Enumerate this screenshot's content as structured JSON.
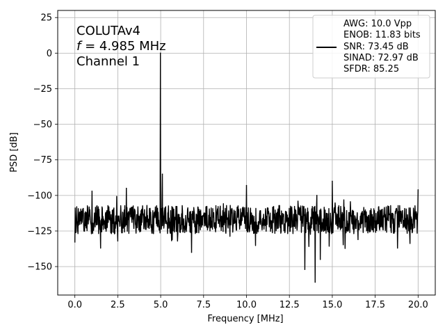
{
  "chart_data": {
    "type": "line",
    "title": "",
    "xlabel": "Frequency [MHz]",
    "ylabel": "PSD [dB]",
    "xlim": [
      -1,
      21
    ],
    "ylim": [
      -170,
      30
    ],
    "xticks": [
      0,
      2.5,
      5,
      7.5,
      10,
      12.5,
      15,
      17.5,
      20
    ],
    "xtick_labels": [
      "0.0",
      "2.5",
      "5.0",
      "7.5",
      "10.0",
      "12.5",
      "15.0",
      "17.5",
      "20.0"
    ],
    "yticks": [
      25,
      0,
      -25,
      -50,
      -75,
      -100,
      -125,
      -150
    ],
    "ytick_labels": [
      "25",
      "0",
      "−25",
      "−50",
      "−75",
      "−100",
      "−125",
      "−150"
    ],
    "grid": true,
    "legend_placement": "top-right",
    "line_color": "#000000",
    "annotation": {
      "line1": "COLUTAv4",
      "line2_italic": "f",
      "line2_rest": " = 4.985 MHz",
      "line3": "Channel 1"
    },
    "legend_entries": [
      "AWG: 10.0 Vpp",
      "ENOB: 11.83 bits",
      "SNR: 73.45 dB",
      "SINAD: 72.97 dB",
      "SFDR: 85.25"
    ],
    "noise_floor_db": -117,
    "noise_spread_db": 10,
    "peaks": [
      {
        "x": 4.985,
        "y": 0
      },
      {
        "x": 1.0,
        "y": -97
      },
      {
        "x": 3.0,
        "y": -95
      },
      {
        "x": 5.1,
        "y": -85
      },
      {
        "x": 10.0,
        "y": -93
      },
      {
        "x": 13.0,
        "y": -104
      },
      {
        "x": 14.1,
        "y": -100
      },
      {
        "x": 15.0,
        "y": -90
      },
      {
        "x": 20.0,
        "y": -96
      }
    ],
    "dips": [
      {
        "x": 1.5,
        "y": -137
      },
      {
        "x": 2.5,
        "y": -132
      },
      {
        "x": 6.8,
        "y": -140
      },
      {
        "x": 13.4,
        "y": -152
      },
      {
        "x": 14.0,
        "y": -161
      },
      {
        "x": 14.3,
        "y": -145
      },
      {
        "x": 16.5,
        "y": -131
      },
      {
        "x": 18.8,
        "y": -137
      }
    ]
  }
}
